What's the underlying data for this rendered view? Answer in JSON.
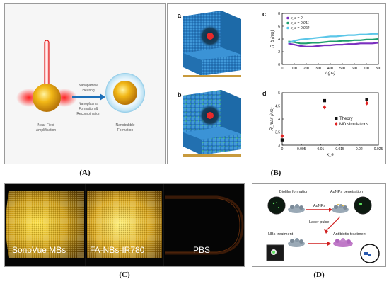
{
  "panel_labels": {
    "a": "(A)",
    "b": "(B)",
    "c": "(C)",
    "d": "(D)"
  },
  "panel_a": {
    "step1": "Nanoparticle",
    "step2": "Heating",
    "step3": "Nanoplasma",
    "step4": "Formation &",
    "step5": "Recombination",
    "left_caption_1": "Near-Field",
    "left_caption_2": "Amplification",
    "right_caption_1": "Nanobubble",
    "right_caption_2": "Formation"
  },
  "panel_b": {
    "sim_label_a": "a",
    "sim_label_b": "b",
    "chart_label_c": "c",
    "chart_label_d": "d"
  },
  "panel_c": {
    "labels": [
      "SonoVue MBs",
      "FA-NBs-IR780",
      "PBS"
    ]
  },
  "panel_d": {
    "biofilm": "Biofilm formation",
    "aunps_pen": "AuNPs penetration",
    "aunps": "AuNPs",
    "laser": "Laser pulse",
    "nbs": "NBs treatment",
    "antibiotic": "Antibiotic treatment"
  },
  "chart_data": [
    {
      "id": "c",
      "type": "line",
      "xlabel": "t (ps)",
      "ylabel": "R_b (nm)",
      "xlim": [
        0,
        800
      ],
      "ylim": [
        0,
        8
      ],
      "xticks": [
        0,
        100,
        200,
        300,
        400,
        500,
        600,
        700,
        800
      ],
      "yticks": [
        0,
        2,
        4,
        6,
        8
      ],
      "legend_position": "top-left",
      "series": [
        {
          "name": "x_e = 0",
          "color": "#7a2fbf",
          "x": [
            50,
            100,
            150,
            200,
            250,
            300,
            350,
            400,
            450,
            500,
            550,
            600,
            650,
            700,
            750,
            800
          ],
          "y": [
            3.3,
            3.1,
            2.9,
            2.8,
            2.8,
            2.9,
            3.0,
            3.0,
            3.1,
            3.1,
            3.2,
            3.2,
            3.3,
            3.3,
            3.3,
            3.4
          ]
        },
        {
          "name": "x_e = 0.011",
          "color": "#1e9e6e",
          "x": [
            50,
            100,
            150,
            200,
            250,
            300,
            350,
            400,
            450,
            500,
            550,
            600,
            650,
            700,
            750,
            800
          ],
          "y": [
            3.6,
            3.5,
            3.3,
            3.3,
            3.4,
            3.4,
            3.5,
            3.6,
            3.6,
            3.7,
            3.7,
            3.8,
            3.8,
            3.9,
            3.9,
            4.0
          ]
        },
        {
          "name": "x_e = 0.022",
          "color": "#5bc6e8",
          "x": [
            50,
            100,
            150,
            200,
            250,
            300,
            350,
            400,
            450,
            500,
            550,
            600,
            650,
            700,
            750,
            800
          ],
          "y": [
            3.4,
            3.7,
            3.9,
            4.0,
            4.1,
            4.2,
            4.3,
            4.4,
            4.4,
            4.5,
            4.6,
            4.6,
            4.7,
            4.7,
            4.8,
            4.8
          ]
        }
      ]
    },
    {
      "id": "d",
      "type": "scatter",
      "xlabel": "x_e",
      "ylabel": "R_max (nm)",
      "xlim": [
        0,
        0.025
      ],
      "ylim": [
        3,
        5
      ],
      "xticks": [
        "0",
        "0.005",
        "0.01",
        "0.015",
        "0.02",
        "0.025"
      ],
      "yticks": [
        3,
        3.5,
        4,
        4.5,
        5
      ],
      "legend_position": "center-right",
      "series": [
        {
          "name": "Theory",
          "marker": "square",
          "color": "#111111",
          "x": [
            0,
            0.011,
            0.022
          ],
          "y": [
            3.2,
            4.7,
            4.75
          ]
        },
        {
          "name": "MD simulations",
          "marker": "diamond",
          "color": "#e02020",
          "x": [
            0,
            0.011,
            0.022
          ],
          "y": [
            3.35,
            4.45,
            4.6
          ]
        }
      ]
    }
  ]
}
